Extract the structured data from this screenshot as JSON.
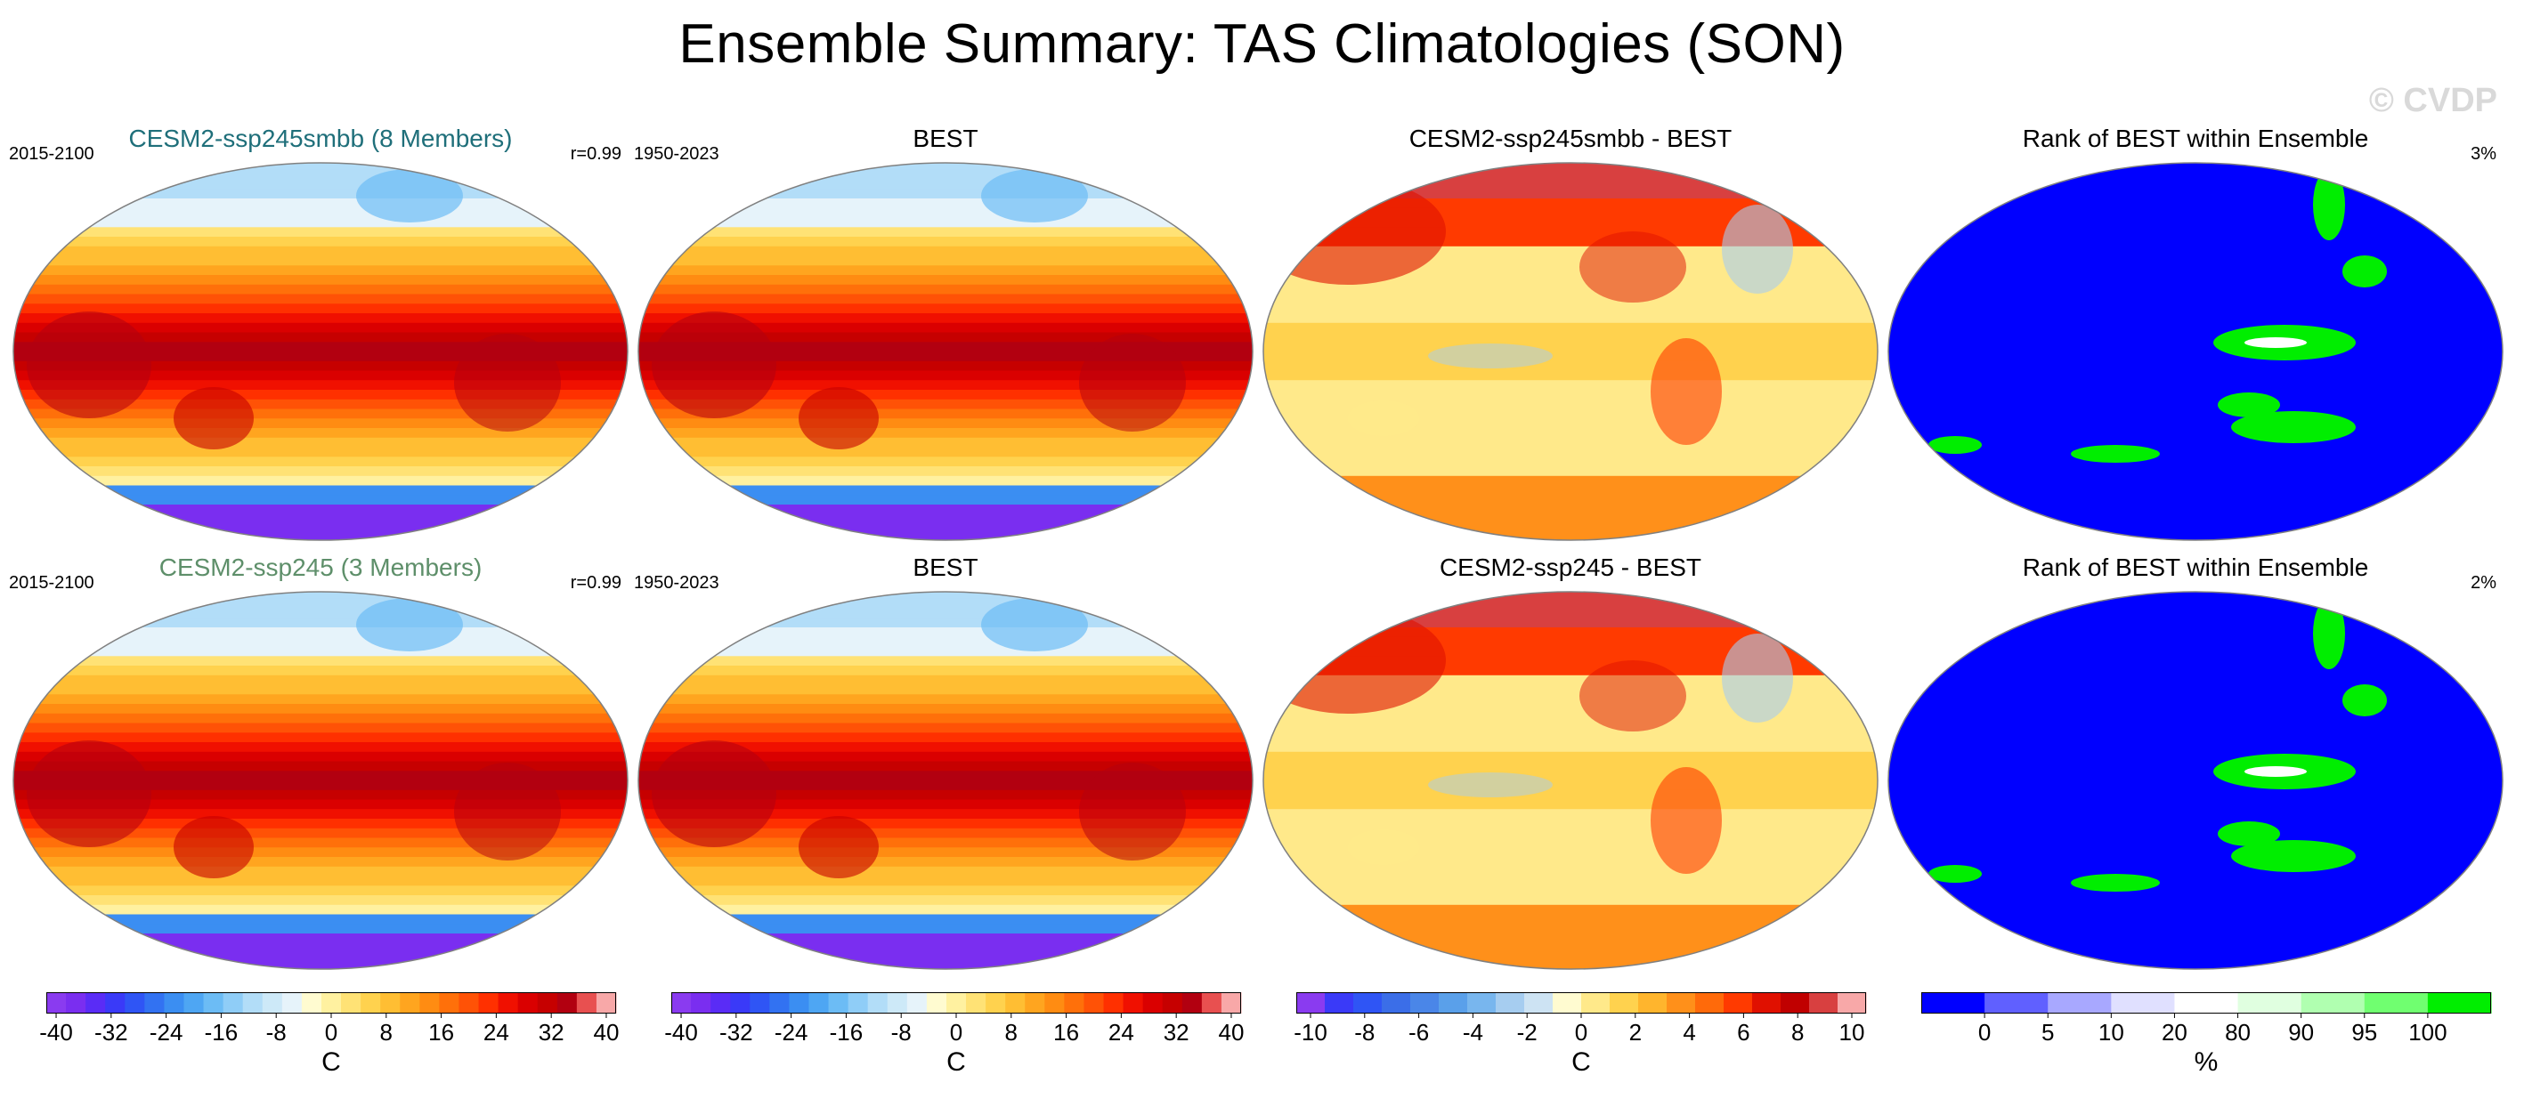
{
  "title": "Ensemble Summary: TAS Climatologies (SON)",
  "watermark": "© CVDP",
  "panels": [
    {
      "title": "CESM2-ssp245smbb (8 Members)",
      "title_color": "#1f6f7a",
      "left_label": "2015-2100",
      "right_label": "r=0.99",
      "kind": "clim"
    },
    {
      "title": "BEST",
      "title_color": "#000000",
      "left_label": "1950-2023",
      "right_label": "",
      "kind": "clim"
    },
    {
      "title": "CESM2-ssp245smbb - BEST",
      "title_color": "#000000",
      "left_label": "",
      "right_label": "",
      "kind": "diff"
    },
    {
      "title": "Rank of BEST within Ensemble",
      "title_color": "#000000",
      "left_label": "",
      "right_label": "3%",
      "kind": "rank"
    },
    {
      "title": "CESM2-ssp245 (3 Members)",
      "title_color": "#5e8f6a",
      "left_label": "2015-2100",
      "right_label": "r=0.99",
      "kind": "clim"
    },
    {
      "title": "BEST",
      "title_color": "#000000",
      "left_label": "1950-2023",
      "right_label": "",
      "kind": "clim"
    },
    {
      "title": "CESM2-ssp245 - BEST",
      "title_color": "#000000",
      "left_label": "",
      "right_label": "",
      "kind": "diff"
    },
    {
      "title": "Rank of BEST within Ensemble",
      "title_color": "#000000",
      "left_label": "",
      "right_label": "2%",
      "kind": "rank"
    }
  ],
  "colorbars": [
    {
      "unit": "C",
      "tick_labels": [
        "-40",
        "-32",
        "-24",
        "-16",
        "-8",
        "0",
        "8",
        "16",
        "24",
        "32",
        "40"
      ],
      "colors": [
        "#8a3bf0",
        "#7a2ef0",
        "#5a2cf6",
        "#3a3af8",
        "#2f55f5",
        "#3272f2",
        "#3b8ef2",
        "#4ea6f3",
        "#6cbcf5",
        "#8fcdf7",
        "#b2ddf8",
        "#cde9f8",
        "#e6f3fa",
        "#fffbd0",
        "#fff1a0",
        "#ffe275",
        "#ffd24e",
        "#ffbe33",
        "#ffa51f",
        "#ff8c12",
        "#ff700a",
        "#ff5206",
        "#ff3000",
        "#f01000",
        "#da0000",
        "#c60000",
        "#b20010",
        "#e85050",
        "#f8a8a8"
      ]
    },
    {
      "unit": "C",
      "tick_labels": [
        "-40",
        "-32",
        "-24",
        "-16",
        "-8",
        "0",
        "8",
        "16",
        "24",
        "32",
        "40"
      ],
      "colors": [
        "#8a3bf0",
        "#7a2ef0",
        "#5a2cf6",
        "#3a3af8",
        "#2f55f5",
        "#3272f2",
        "#3b8ef2",
        "#4ea6f3",
        "#6cbcf5",
        "#8fcdf7",
        "#b2ddf8",
        "#cde9f8",
        "#e6f3fa",
        "#fffbd0",
        "#fff1a0",
        "#ffe275",
        "#ffd24e",
        "#ffbe33",
        "#ffa51f",
        "#ff8c12",
        "#ff700a",
        "#ff5206",
        "#ff3000",
        "#f01000",
        "#da0000",
        "#c60000",
        "#b20010",
        "#e85050",
        "#f8a8a8"
      ]
    },
    {
      "unit": "C",
      "tick_labels": [
        "-10",
        "-8",
        "-6",
        "-4",
        "-2",
        "0",
        "2",
        "4",
        "6",
        "8",
        "10"
      ],
      "colors": [
        "#8a3bf0",
        "#3a3af8",
        "#2f55f5",
        "#3b6ee8",
        "#4a86e8",
        "#5aa0ea",
        "#78b6ee",
        "#a6cdf0",
        "#cde3f3",
        "#fffbd0",
        "#ffe98a",
        "#ffd24e",
        "#ffb52d",
        "#ff901a",
        "#ff6a0a",
        "#ff3a00",
        "#e01000",
        "#c00000",
        "#d84040",
        "#f8a8a8"
      ]
    },
    {
      "unit": "%",
      "tick_labels": [
        "0",
        "5",
        "10",
        "20",
        "80",
        "90",
        "95",
        "100"
      ],
      "colors": [
        "#0000ff",
        "#6060ff",
        "#a8a8ff",
        "#e0e0ff",
        "#ffffff",
        "#e0ffe0",
        "#b0ffb0",
        "#70ff70",
        "#00ee00"
      ]
    }
  ],
  "chart_data": [
    {
      "type": "heatmap",
      "title": "CESM2-ssp245smbb (8 Members)",
      "subtitle_left": "2015-2100",
      "subtitle_right": "r=0.99",
      "variable": "TAS climatology SON",
      "unit": "C",
      "value_range": [
        -40,
        40
      ]
    },
    {
      "type": "heatmap",
      "title": "BEST",
      "subtitle_left": "1950-2023",
      "variable": "TAS climatology SON",
      "unit": "C",
      "value_range": [
        -40,
        40
      ]
    },
    {
      "type": "heatmap",
      "title": "CESM2-ssp245smbb - BEST",
      "variable": "TAS difference SON",
      "unit": "C",
      "value_range": [
        -10,
        10
      ]
    },
    {
      "type": "heatmap",
      "title": "Rank of BEST within Ensemble",
      "subtitle_right": "3%",
      "variable": "rank",
      "unit": "%",
      "levels": [
        0,
        5,
        10,
        20,
        80,
        90,
        95,
        100
      ]
    },
    {
      "type": "heatmap",
      "title": "CESM2-ssp245 (3 Members)",
      "subtitle_left": "2015-2100",
      "subtitle_right": "r=0.99",
      "variable": "TAS climatology SON",
      "unit": "C",
      "value_range": [
        -40,
        40
      ]
    },
    {
      "type": "heatmap",
      "title": "BEST",
      "subtitle_left": "1950-2023",
      "variable": "TAS climatology SON",
      "unit": "C",
      "value_range": [
        -40,
        40
      ]
    },
    {
      "type": "heatmap",
      "title": "CESM2-ssp245 - BEST",
      "variable": "TAS difference SON",
      "unit": "C",
      "value_range": [
        -10,
        10
      ]
    },
    {
      "type": "heatmap",
      "title": "Rank of BEST within Ensemble",
      "subtitle_right": "2%",
      "variable": "rank",
      "unit": "%",
      "levels": [
        0,
        5,
        10,
        20,
        80,
        90,
        95,
        100
      ]
    }
  ]
}
